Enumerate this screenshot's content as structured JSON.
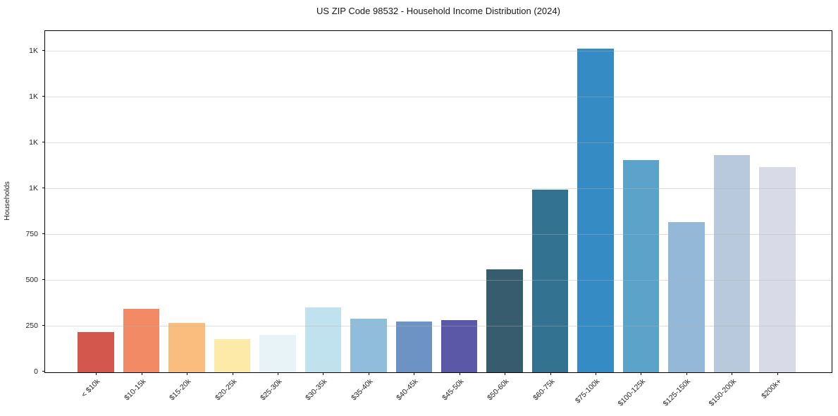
{
  "chart_data": {
    "type": "bar",
    "title": "US ZIP Code 98532 - Household Income Distribution (2024)",
    "xlabel": "",
    "ylabel": "Households",
    "categories": [
      "< $10k",
      "$10-15k",
      "$15-20k",
      "$20-25k",
      "$25-30k",
      "$30-35k",
      "$35-40k",
      "$40-45k",
      "$45-50k",
      "$50-60k",
      "$60-75k",
      "$75-100k",
      "$100-125k",
      "$125-150k",
      "$150-200k",
      "$200k+"
    ],
    "values": [
      220,
      347,
      268,
      180,
      203,
      352,
      291,
      275,
      283,
      560,
      995,
      1765,
      1155,
      818,
      1183,
      1118
    ],
    "bar_colors": [
      "#d4574e",
      "#f18a65",
      "#fbbd7d",
      "#fde9a8",
      "#e8f3f7",
      "#c0e1ee",
      "#90bddc",
      "#6c93c4",
      "#5b58a8",
      "#365c6e",
      "#337291",
      "#358bc4",
      "#5ba3c9",
      "#93b8d8",
      "#b8c9de",
      "#d9dae8"
    ],
    "ylim": [
      0,
      1860
    ],
    "yticks": [
      {
        "value": 0,
        "label": "0"
      },
      {
        "value": 250,
        "label": "250"
      },
      {
        "value": 500,
        "label": "500"
      },
      {
        "value": 750,
        "label": "750"
      },
      {
        "value": 1000,
        "label": "1K"
      },
      {
        "value": 1250,
        "label": "1K"
      },
      {
        "value": 1500,
        "label": "1K"
      },
      {
        "value": 1750,
        "label": "1K"
      }
    ],
    "grid": "horizontal",
    "legend": "none",
    "bar_width_ratio": 0.8,
    "x_tick_rotation": 45
  },
  "colors": {
    "background": "#ffffff",
    "spine": "#000000",
    "gridline": "#b2b2b2",
    "title_text": "#1a1a1a",
    "tick_text": "#262626"
  }
}
